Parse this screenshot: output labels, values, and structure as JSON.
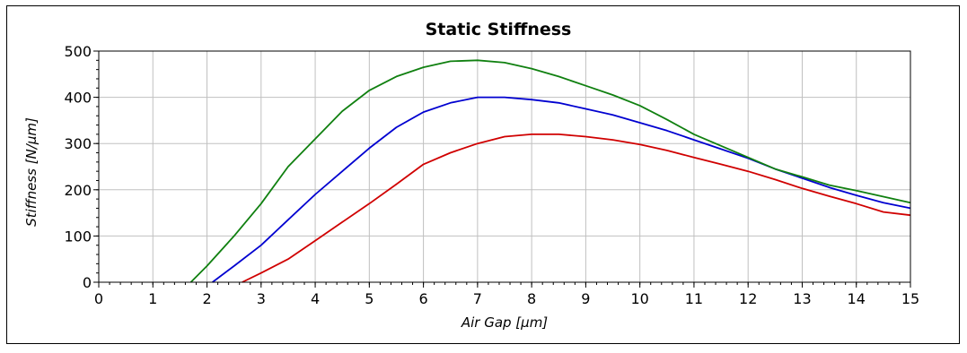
{
  "chart_data": {
    "type": "line",
    "title": "Static Stiffness",
    "xlabel": "Air Gap [µm]",
    "ylabel": "Stiffness [N/µm]",
    "xlim": [
      0,
      15
    ],
    "ylim": [
      0,
      500
    ],
    "xticks": [
      "0",
      "1",
      "2",
      "3",
      "4",
      "5",
      "6",
      "7",
      "8",
      "9",
      "10",
      "11",
      "12",
      "13",
      "14",
      "15"
    ],
    "yticks": [
      "0",
      "100",
      "200",
      "300",
      "400",
      "500"
    ],
    "grid": true,
    "legend": "none",
    "series": [
      {
        "color": "#d00000",
        "x": [
          2.65,
          3.0,
          3.5,
          4.0,
          4.5,
          5.0,
          5.5,
          6.0,
          6.5,
          7.0,
          7.5,
          8.0,
          8.5,
          9.0,
          9.5,
          10.0,
          10.5,
          11.0,
          11.5,
          12.0,
          12.5,
          13.0,
          13.5,
          14.0,
          14.5,
          15.0
        ],
        "y": [
          0,
          20,
          50,
          90,
          130,
          170,
          212,
          255,
          280,
          300,
          315,
          320,
          320,
          315,
          308,
          298,
          285,
          270,
          255,
          240,
          222,
          203,
          186,
          170,
          152,
          145
        ]
      },
      {
        "color": "#0000d0",
        "x": [
          2.1,
          2.5,
          3.0,
          3.5,
          4.0,
          4.5,
          5.0,
          5.5,
          6.0,
          6.5,
          7.0,
          7.5,
          8.0,
          8.5,
          9.0,
          9.5,
          10.0,
          10.5,
          11.0,
          11.5,
          12.0,
          12.5,
          13.0,
          13.5,
          14.0,
          14.5,
          15.0
        ],
        "y": [
          0,
          35,
          80,
          135,
          190,
          240,
          290,
          335,
          368,
          388,
          400,
          400,
          395,
          388,
          375,
          362,
          345,
          328,
          308,
          288,
          268,
          245,
          225,
          205,
          188,
          172,
          160
        ]
      },
      {
        "color": "#108010",
        "x": [
          1.7,
          2.0,
          2.5,
          3.0,
          3.5,
          4.0,
          4.5,
          5.0,
          5.5,
          6.0,
          6.5,
          7.0,
          7.5,
          8.0,
          8.5,
          9.0,
          9.5,
          10.0,
          10.5,
          11.0,
          11.5,
          12.0,
          12.5,
          13.0,
          13.5,
          14.0,
          14.5,
          15.0
        ],
        "y": [
          0,
          35,
          100,
          170,
          250,
          310,
          370,
          415,
          445,
          465,
          478,
          480,
          475,
          462,
          445,
          425,
          405,
          382,
          352,
          320,
          295,
          270,
          245,
          228,
          210,
          198,
          185,
          172
        ]
      }
    ]
  }
}
